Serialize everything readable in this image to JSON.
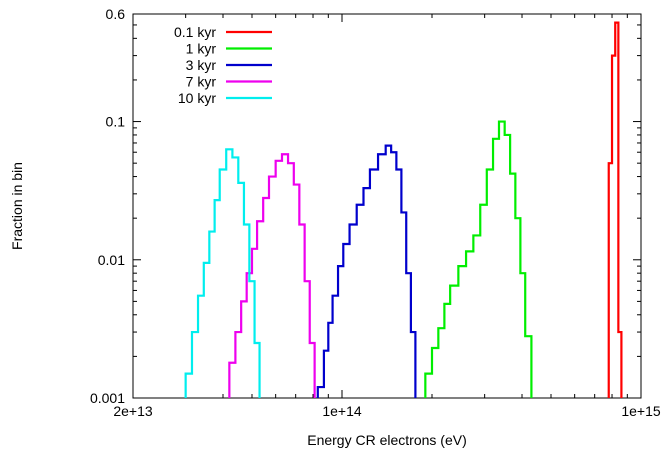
{
  "chart_data": {
    "type": "line",
    "xlabel": "Energy CR electrons (eV)",
    "ylabel": "Fraction in bin",
    "x_scale": "log",
    "y_scale": "log",
    "xlim": [
      20000000000000,
      1000000000000000
    ],
    "ylim": [
      0.001,
      0.6
    ],
    "x_ticks": [
      {
        "value": 20000000000000,
        "label": "2e+13"
      },
      {
        "value": 100000000000000,
        "label": "1e+14"
      },
      {
        "value": 1000000000000000,
        "label": "1e+15"
      }
    ],
    "y_ticks": [
      {
        "value": 0.001,
        "label": "0.001"
      },
      {
        "value": 0.01,
        "label": "0.01"
      },
      {
        "value": 0.1,
        "label": "0.1"
      },
      {
        "value": 0.6,
        "label": "0.6"
      }
    ],
    "legend_position": "top-left",
    "grid": false,
    "series": [
      {
        "name": "0.1 kyr",
        "color": "#ff0000",
        "points": [
          [
            780000000000000,
            0.001
          ],
          [
            780000000000000,
            0.05
          ],
          [
            800000000000000,
            0.05
          ],
          [
            800000000000000,
            0.3
          ],
          [
            820000000000000,
            0.3
          ],
          [
            820000000000000,
            0.52
          ],
          [
            840000000000000,
            0.52
          ],
          [
            840000000000000,
            0.003
          ],
          [
            860000000000000,
            0.003
          ],
          [
            860000000000000,
            0.001
          ]
        ]
      },
      {
        "name": "1 kyr",
        "color": "#00ee00",
        "points": [
          [
            190000000000000,
            0.001
          ],
          [
            190000000000000,
            0.0015
          ],
          [
            200000000000000,
            0.0015
          ],
          [
            200000000000000,
            0.0023
          ],
          [
            210000000000000,
            0.0023
          ],
          [
            210000000000000,
            0.0032
          ],
          [
            220000000000000,
            0.0032
          ],
          [
            220000000000000,
            0.0048
          ],
          [
            230000000000000,
            0.0048
          ],
          [
            230000000000000,
            0.0065
          ],
          [
            245000000000000,
            0.0065
          ],
          [
            245000000000000,
            0.009
          ],
          [
            260000000000000,
            0.009
          ],
          [
            260000000000000,
            0.0115
          ],
          [
            275000000000000,
            0.0115
          ],
          [
            275000000000000,
            0.015
          ],
          [
            290000000000000,
            0.015
          ],
          [
            290000000000000,
            0.025
          ],
          [
            305000000000000,
            0.025
          ],
          [
            305000000000000,
            0.045
          ],
          [
            320000000000000,
            0.045
          ],
          [
            320000000000000,
            0.075
          ],
          [
            335000000000000,
            0.075
          ],
          [
            335000000000000,
            0.1
          ],
          [
            350000000000000,
            0.1
          ],
          [
            350000000000000,
            0.08
          ],
          [
            365000000000000,
            0.08
          ],
          [
            365000000000000,
            0.042
          ],
          [
            380000000000000,
            0.042
          ],
          [
            380000000000000,
            0.02
          ],
          [
            395000000000000,
            0.02
          ],
          [
            395000000000000,
            0.008
          ],
          [
            410000000000000,
            0.008
          ],
          [
            410000000000000,
            0.0028
          ],
          [
            430000000000000,
            0.0028
          ],
          [
            430000000000000,
            0.001
          ]
        ]
      },
      {
        "name": "3 kyr",
        "color": "#0000cc",
        "points": [
          [
            83000000000000,
            0.001
          ],
          [
            83000000000000,
            0.0012
          ],
          [
            87000000000000,
            0.0012
          ],
          [
            87000000000000,
            0.0022
          ],
          [
            90000000000000,
            0.0022
          ],
          [
            90000000000000,
            0.0035
          ],
          [
            93000000000000,
            0.0035
          ],
          [
            93000000000000,
            0.0055
          ],
          [
            97000000000000,
            0.0055
          ],
          [
            97000000000000,
            0.009
          ],
          [
            101000000000000,
            0.009
          ],
          [
            101000000000000,
            0.013
          ],
          [
            106000000000000,
            0.013
          ],
          [
            106000000000000,
            0.018
          ],
          [
            112000000000000,
            0.018
          ],
          [
            112000000000000,
            0.025
          ],
          [
            118000000000000,
            0.025
          ],
          [
            118000000000000,
            0.033
          ],
          [
            124000000000000,
            0.033
          ],
          [
            124000000000000,
            0.045
          ],
          [
            132000000000000,
            0.045
          ],
          [
            132000000000000,
            0.058
          ],
          [
            140000000000000,
            0.058
          ],
          [
            140000000000000,
            0.067
          ],
          [
            146000000000000,
            0.067
          ],
          [
            146000000000000,
            0.06
          ],
          [
            152000000000000,
            0.06
          ],
          [
            152000000000000,
            0.045
          ],
          [
            158000000000000,
            0.045
          ],
          [
            158000000000000,
            0.022
          ],
          [
            164000000000000,
            0.022
          ],
          [
            164000000000000,
            0.008
          ],
          [
            170000000000000,
            0.008
          ],
          [
            170000000000000,
            0.003
          ],
          [
            176000000000000,
            0.003
          ],
          [
            176000000000000,
            0.001
          ]
        ]
      },
      {
        "name": "7 kyr",
        "color": "#ee00ee",
        "points": [
          [
            42000000000000,
            0.001
          ],
          [
            42000000000000,
            0.0018
          ],
          [
            44000000000000,
            0.0018
          ],
          [
            44000000000000,
            0.003
          ],
          [
            46000000000000,
            0.003
          ],
          [
            46000000000000,
            0.005
          ],
          [
            48000000000000,
            0.005
          ],
          [
            48000000000000,
            0.008
          ],
          [
            50000000000000,
            0.008
          ],
          [
            50000000000000,
            0.012
          ],
          [
            52000000000000,
            0.012
          ],
          [
            52000000000000,
            0.019
          ],
          [
            54500000000000,
            0.019
          ],
          [
            54500000000000,
            0.028
          ],
          [
            57000000000000,
            0.028
          ],
          [
            57000000000000,
            0.04
          ],
          [
            60000000000000,
            0.04
          ],
          [
            60000000000000,
            0.052
          ],
          [
            63000000000000,
            0.052
          ],
          [
            63000000000000,
            0.058
          ],
          [
            66000000000000,
            0.058
          ],
          [
            66000000000000,
            0.05
          ],
          [
            69000000000000,
            0.05
          ],
          [
            69000000000000,
            0.035
          ],
          [
            72000000000000,
            0.035
          ],
          [
            72000000000000,
            0.018
          ],
          [
            75000000000000,
            0.018
          ],
          [
            75000000000000,
            0.007
          ],
          [
            78000000000000,
            0.007
          ],
          [
            78000000000000,
            0.0025
          ],
          [
            81000000000000,
            0.0025
          ],
          [
            81000000000000,
            0.001
          ]
        ]
      },
      {
        "name": "10 kyr",
        "color": "#00eeee",
        "points": [
          [
            30000000000000,
            0.001
          ],
          [
            30000000000000,
            0.0015
          ],
          [
            31500000000000,
            0.0015
          ],
          [
            31500000000000,
            0.003
          ],
          [
            33000000000000,
            0.003
          ],
          [
            33000000000000,
            0.0055
          ],
          [
            34500000000000,
            0.0055
          ],
          [
            34500000000000,
            0.0095
          ],
          [
            36000000000000,
            0.0095
          ],
          [
            36000000000000,
            0.016
          ],
          [
            37500000000000,
            0.016
          ],
          [
            37500000000000,
            0.027
          ],
          [
            39000000000000,
            0.027
          ],
          [
            39000000000000,
            0.045
          ],
          [
            41000000000000,
            0.045
          ],
          [
            41000000000000,
            0.063
          ],
          [
            43000000000000,
            0.063
          ],
          [
            43000000000000,
            0.055
          ],
          [
            45000000000000,
            0.055
          ],
          [
            45000000000000,
            0.036
          ],
          [
            47000000000000,
            0.036
          ],
          [
            47000000000000,
            0.018
          ],
          [
            49000000000000,
            0.018
          ],
          [
            49000000000000,
            0.007
          ],
          [
            51000000000000,
            0.007
          ],
          [
            51000000000000,
            0.0025
          ],
          [
            53000000000000,
            0.0025
          ],
          [
            53000000000000,
            0.001
          ]
        ]
      }
    ]
  }
}
